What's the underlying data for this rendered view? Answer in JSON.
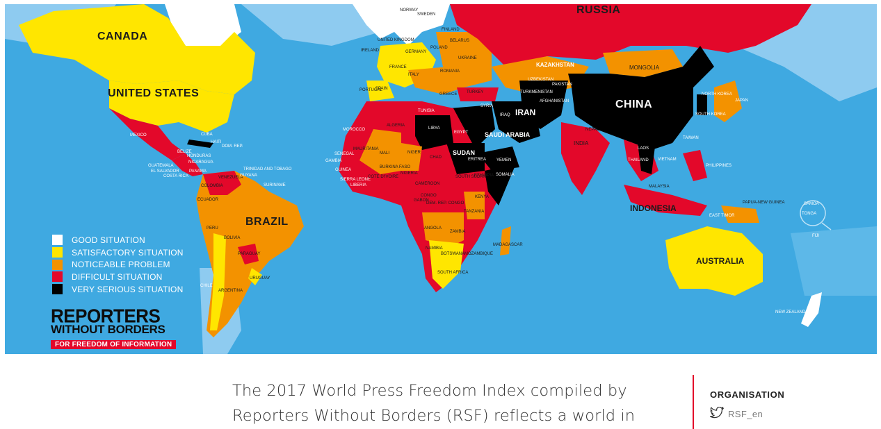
{
  "map": {
    "colors": {
      "ocean": "#3fa9e1",
      "ocean_light": "#8ecbf0",
      "good": "#ffffff",
      "satisfactory": "#ffe600",
      "noticeable": "#f39200",
      "difficult": "#e3082a",
      "very_serious": "#000000"
    },
    "labels": {
      "canada": "CANADA",
      "united_states": "UNITED STATES",
      "mexico": "MEXICO",
      "cuba": "CUBA",
      "haiti": "HAITI",
      "dom_rep": "DOM. REP.",
      "belize": "BELIZE",
      "honduras": "HONDURAS",
      "guatemala": "GUATEMALA",
      "nicaragua": "NICARAGUA",
      "el_salvador": "EL SALVADOR",
      "costa_rica": "COSTA RICA",
      "panama": "PANAMA",
      "venezuela": "VENEZUELA",
      "colombia": "COLOMBIA",
      "trinidad": "TRINIDAD AND TOBAGO",
      "guyana": "GUYANA",
      "suriname": "SURINAME",
      "ecuador": "ECUADOR",
      "peru": "PERU",
      "brazil": "BRAZIL",
      "bolivia": "BOLIVIA",
      "paraguay": "PARAGUAY",
      "uruguay": "URUGUAY",
      "chile": "CHILE",
      "argentina": "ARGENTINA",
      "russia": "RUSSIA",
      "norway": "NORWAY",
      "sweden": "SWEDEN",
      "finland": "FINLAND",
      "united_kingdom": "UNITED KINGDOM",
      "ireland": "IRELAND",
      "france": "FRANCE",
      "spain": "SPAIN",
      "portugal": "PORTUGAL",
      "germany": "GERMANY",
      "poland": "POLAND",
      "italy": "ITALY",
      "ukraine": "UKRAINE",
      "belarus": "BELARUS",
      "romania": "ROMANIA",
      "turkey": "TURKEY",
      "greece": "GREECE",
      "syria": "SYRIA",
      "iraq": "IRAQ",
      "iran": "IRAN",
      "saudi_arabia": "SAUDI ARABIA",
      "yemen": "YEMEN",
      "egypt": "EGYPT",
      "libya": "LIBYA",
      "tunisia": "TUNISIA",
      "algeria": "ALGERIA",
      "morocco": "MOROCCO",
      "mauritania": "MAURITANIA",
      "mali": "MALI",
      "niger": "NIGER",
      "chad": "CHAD",
      "sudan": "SUDAN",
      "eritrea": "ERITREA",
      "south_sudan": "SOUTH SUDAN",
      "ethiopia": "ETHIOPIA",
      "somalia": "SOMALIA",
      "senegal": "SENEGAL",
      "gambia": "GAMBIA",
      "guinea": "GUINEA",
      "sierra_leone": "SIERRA LEONE",
      "liberia": "LIBERIA",
      "cote_divoire": "COTE D'IVOIRE",
      "burkina": "BURKINA FASO",
      "nigeria": "NIGERIA",
      "cameroon": "CAMEROON",
      "gabon": "GABON",
      "congo": "CONGO",
      "drc": "DEM. REP. CONGO",
      "kenya": "KENYA",
      "tanzania": "TANZANIA",
      "angola": "ANGOLA",
      "zambia": "ZAMBIA",
      "namibia": "NAMIBIA",
      "botswana": "BOTSWANA",
      "mozambique": "MOZAMBIQUE",
      "south_africa": "SOUTH AFRICA",
      "madagascar": "MADAGASCAR",
      "kazakhstan": "KAZAKHSTAN",
      "uzbekistan": "UZBEKISTAN",
      "turkmenistan": "TURKMENISTAN",
      "afghanistan": "AFGHANISTAN",
      "pakistan": "PAKISTAN",
      "india": "INDIA",
      "nepal": "NEPAL",
      "mongolia": "MONGOLIA",
      "china": "CHINA",
      "north_korea": "NORTH KOREA",
      "south_korea": "SOUTH KOREA",
      "japan": "JAPAN",
      "taiwan": "TAIWAN",
      "laos": "LAOS",
      "vietnam": "VIETNAM",
      "thailand": "THAILAND",
      "malaysia": "MALAYSIA",
      "philippines": "PHILIPPINES",
      "indonesia": "INDONESIA",
      "east_timor": "EAST TIMOR",
      "papua": "PAPUA-NEW GUINEA",
      "australia": "AUSTRALIA",
      "new_zealand": "NEW ZEALAND",
      "samoa": "SAMOA",
      "tonga": "TONGA",
      "fiji": "FIJI"
    },
    "legend": [
      {
        "label": "GOOD SITUATION",
        "color": "#ffffff"
      },
      {
        "label": "SATISFACTORY SITUATION",
        "color": "#ffe600"
      },
      {
        "label": "NOTICEABLE PROBLEM",
        "color": "#f39200"
      },
      {
        "label": "DIFFICULT SITUATION",
        "color": "#e3082a"
      },
      {
        "label": "VERY SERIOUS SITUATION",
        "color": "#000000"
      }
    ],
    "logo": {
      "line1": "REPORTERS",
      "line2": "WITHOUT BORDERS",
      "line3": "FOR FREEDOM OF INFORMATION"
    }
  },
  "article": {
    "lead": "The 2017 World Press Freedom Index compiled by Reporters Without Borders (RSF) reflects a world in"
  },
  "sidebar": {
    "title": "ORGANISATION",
    "twitter_icon": "twitter-bird-icon",
    "handle": "RSF_en"
  }
}
